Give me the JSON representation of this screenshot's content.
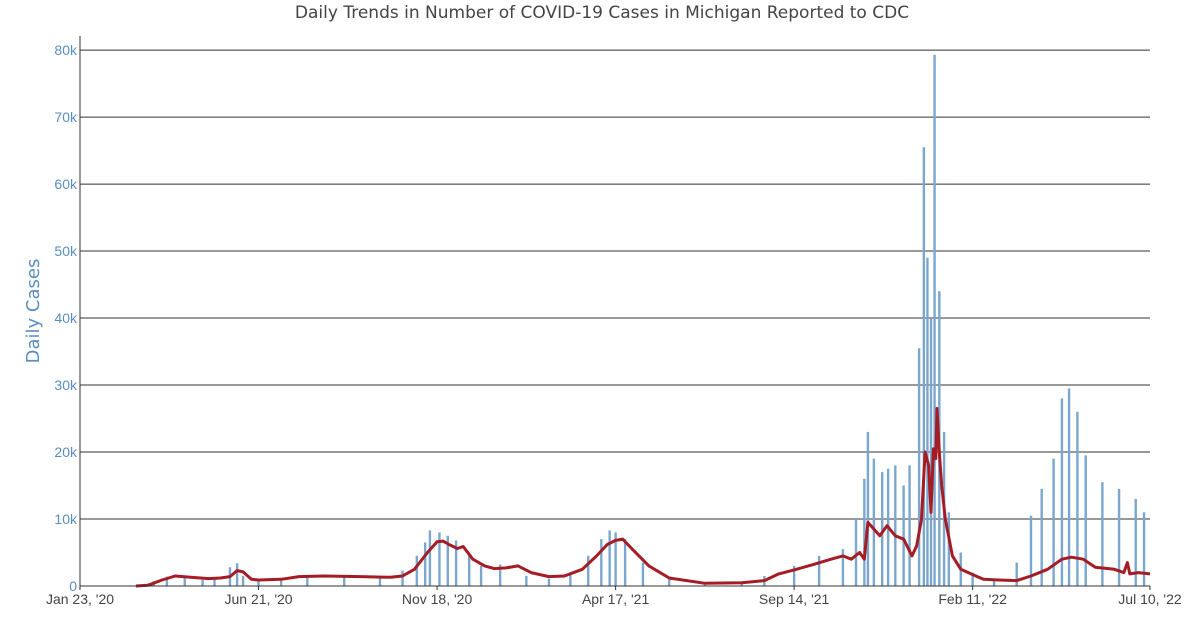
{
  "chart_data": {
    "type": "bar",
    "title": "Daily Trends in Number of COVID-19 Cases in Michigan Reported to CDC",
    "xlabel": "",
    "ylabel": "Daily Cases",
    "x_start": "2020-01-23",
    "x_end": "2022-07-10",
    "ylim": [
      0,
      83000
    ],
    "yticks": [
      0,
      10000,
      20000,
      30000,
      40000,
      50000,
      60000,
      70000,
      80000
    ],
    "ytick_labels": [
      "0",
      "10k",
      "20k",
      "30k",
      "40k",
      "50k",
      "60k",
      "70k",
      "80k"
    ],
    "xticks": [
      "2020-01-23",
      "2020-06-21",
      "2020-11-18",
      "2021-04-17",
      "2021-09-14",
      "2022-02-11",
      "2022-07-10"
    ],
    "xtick_labels": [
      "Jan 23, '20",
      "Jun 21, '20",
      "Nov 18, '20",
      "Apr 17, '21",
      "Sep 14, '21",
      "Feb 11, '22",
      "Jul 10, '22"
    ],
    "grid": true,
    "colors": {
      "bars": "#7ba7cf",
      "average": "#a51c24",
      "ylabel": "#5b8ec2",
      "grid": "#333333"
    },
    "series": [
      {
        "type": "bar",
        "points": [
          [
            "2020-03-10",
            20
          ],
          [
            "2020-03-25",
            700
          ],
          [
            "2020-04-05",
            1400
          ],
          [
            "2020-04-20",
            1200
          ],
          [
            "2020-05-05",
            900
          ],
          [
            "2020-05-15",
            1000
          ],
          [
            "2020-05-28",
            2800
          ],
          [
            "2020-06-03",
            3400
          ],
          [
            "2020-06-08",
            1500
          ],
          [
            "2020-06-21",
            900
          ],
          [
            "2020-07-10",
            1200
          ],
          [
            "2020-08-01",
            1500
          ],
          [
            "2020-09-01",
            1300
          ],
          [
            "2020-10-01",
            1200
          ],
          [
            "2020-10-20",
            2300
          ],
          [
            "2020-11-01",
            4500
          ],
          [
            "2020-11-08",
            6500
          ],
          [
            "2020-11-12",
            8300
          ],
          [
            "2020-11-20",
            8000
          ],
          [
            "2020-11-27",
            7500
          ],
          [
            "2020-12-04",
            6800
          ],
          [
            "2020-12-15",
            4500
          ],
          [
            "2020-12-25",
            3000
          ],
          [
            "2021-01-10",
            3200
          ],
          [
            "2021-02-01",
            1500
          ],
          [
            "2021-02-20",
            1100
          ],
          [
            "2021-03-10",
            1800
          ],
          [
            "2021-03-25",
            4500
          ],
          [
            "2021-04-05",
            7000
          ],
          [
            "2021-04-12",
            8300
          ],
          [
            "2021-04-17",
            8000
          ],
          [
            "2021-04-25",
            7000
          ],
          [
            "2021-05-10",
            3500
          ],
          [
            "2021-06-01",
            1000
          ],
          [
            "2021-07-01",
            200
          ],
          [
            "2021-08-01",
            500
          ],
          [
            "2021-08-20",
            1500
          ],
          [
            "2021-09-14",
            3000
          ],
          [
            "2021-10-05",
            4500
          ],
          [
            "2021-10-25",
            5500
          ],
          [
            "2021-11-05",
            10000
          ],
          [
            "2021-11-12",
            16000
          ],
          [
            "2021-11-15",
            23000
          ],
          [
            "2021-11-20",
            19000
          ],
          [
            "2021-11-27",
            17000
          ],
          [
            "2021-12-02",
            17500
          ],
          [
            "2021-12-08",
            18000
          ],
          [
            "2021-12-15",
            15000
          ],
          [
            "2021-12-20",
            18000
          ],
          [
            "2021-12-28",
            35500
          ],
          [
            "2022-01-01",
            65500
          ],
          [
            "2022-01-04",
            49000
          ],
          [
            "2022-01-07",
            40000
          ],
          [
            "2022-01-10",
            79300
          ],
          [
            "2022-01-14",
            44000
          ],
          [
            "2022-01-18",
            23000
          ],
          [
            "2022-01-22",
            11000
          ],
          [
            "2022-02-01",
            5000
          ],
          [
            "2022-02-11",
            2000
          ],
          [
            "2022-03-01",
            900
          ],
          [
            "2022-03-20",
            3500
          ],
          [
            "2022-04-01",
            10500
          ],
          [
            "2022-04-10",
            14500
          ],
          [
            "2022-04-20",
            19000
          ],
          [
            "2022-04-27",
            28000
          ],
          [
            "2022-05-03",
            29500
          ],
          [
            "2022-05-10",
            26000
          ],
          [
            "2022-05-17",
            19500
          ],
          [
            "2022-05-31",
            15500
          ],
          [
            "2022-06-14",
            14500
          ],
          [
            "2022-06-28",
            13000
          ],
          [
            "2022-07-05",
            11000
          ]
        ]
      },
      {
        "type": "line",
        "points": [
          [
            "2020-03-10",
            0
          ],
          [
            "2020-03-20",
            100
          ],
          [
            "2020-04-01",
            900
          ],
          [
            "2020-04-12",
            1500
          ],
          [
            "2020-04-25",
            1300
          ],
          [
            "2020-05-10",
            1100
          ],
          [
            "2020-05-20",
            1200
          ],
          [
            "2020-05-28",
            1400
          ],
          [
            "2020-06-03",
            2300
          ],
          [
            "2020-06-08",
            2100
          ],
          [
            "2020-06-15",
            1000
          ],
          [
            "2020-06-21",
            900
          ],
          [
            "2020-07-10",
            1000
          ],
          [
            "2020-07-25",
            1400
          ],
          [
            "2020-08-15",
            1500
          ],
          [
            "2020-09-15",
            1400
          ],
          [
            "2020-10-10",
            1300
          ],
          [
            "2020-10-20",
            1500
          ],
          [
            "2020-10-30",
            2500
          ],
          [
            "2020-11-10",
            5000
          ],
          [
            "2020-11-18",
            6600
          ],
          [
            "2020-11-23",
            6700
          ],
          [
            "2020-11-28",
            6200
          ],
          [
            "2020-12-05",
            5600
          ],
          [
            "2020-12-10",
            5900
          ],
          [
            "2020-12-18",
            4000
          ],
          [
            "2020-12-28",
            3000
          ],
          [
            "2021-01-05",
            2600
          ],
          [
            "2021-01-15",
            2700
          ],
          [
            "2021-01-25",
            3000
          ],
          [
            "2021-02-05",
            2000
          ],
          [
            "2021-02-20",
            1400
          ],
          [
            "2021-03-05",
            1500
          ],
          [
            "2021-03-20",
            2500
          ],
          [
            "2021-04-01",
            4500
          ],
          [
            "2021-04-10",
            6200
          ],
          [
            "2021-04-17",
            6800
          ],
          [
            "2021-04-23",
            7000
          ],
          [
            "2021-05-01",
            5500
          ],
          [
            "2021-05-15",
            3000
          ],
          [
            "2021-06-01",
            1200
          ],
          [
            "2021-07-01",
            400
          ],
          [
            "2021-08-01",
            500
          ],
          [
            "2021-08-20",
            800
          ],
          [
            "2021-09-01",
            1800
          ],
          [
            "2021-09-14",
            2400
          ],
          [
            "2021-09-30",
            3200
          ],
          [
            "2021-10-15",
            4000
          ],
          [
            "2021-10-25",
            4500
          ],
          [
            "2021-11-01",
            4000
          ],
          [
            "2021-11-08",
            5000
          ],
          [
            "2021-11-12",
            4000
          ],
          [
            "2021-11-15",
            9500
          ],
          [
            "2021-11-20",
            8500
          ],
          [
            "2021-11-25",
            7500
          ],
          [
            "2021-12-01",
            9000
          ],
          [
            "2021-12-08",
            7500
          ],
          [
            "2021-12-15",
            7000
          ],
          [
            "2021-12-22",
            4500
          ],
          [
            "2021-12-26",
            6000
          ],
          [
            "2021-12-30",
            10000
          ],
          [
            "2022-01-02",
            20000
          ],
          [
            "2022-01-05",
            18000
          ],
          [
            "2022-01-07",
            11000
          ],
          [
            "2022-01-09",
            20500
          ],
          [
            "2022-01-11",
            19000
          ],
          [
            "2022-01-12",
            26500
          ],
          [
            "2022-01-14",
            20000
          ],
          [
            "2022-01-16",
            15000
          ],
          [
            "2022-01-19",
            10000
          ],
          [
            "2022-01-25",
            4500
          ],
          [
            "2022-02-01",
            2500
          ],
          [
            "2022-02-11",
            1700
          ],
          [
            "2022-02-20",
            1000
          ],
          [
            "2022-03-05",
            900
          ],
          [
            "2022-03-20",
            800
          ],
          [
            "2022-04-01",
            1500
          ],
          [
            "2022-04-15",
            2500
          ],
          [
            "2022-04-27",
            4000
          ],
          [
            "2022-05-05",
            4300
          ],
          [
            "2022-05-15",
            4000
          ],
          [
            "2022-05-25",
            2800
          ],
          [
            "2022-06-10",
            2500
          ],
          [
            "2022-06-18",
            2000
          ],
          [
            "2022-06-21",
            3500
          ],
          [
            "2022-06-23",
            1800
          ],
          [
            "2022-06-30",
            2000
          ],
          [
            "2022-07-10",
            1800
          ]
        ]
      }
    ]
  }
}
